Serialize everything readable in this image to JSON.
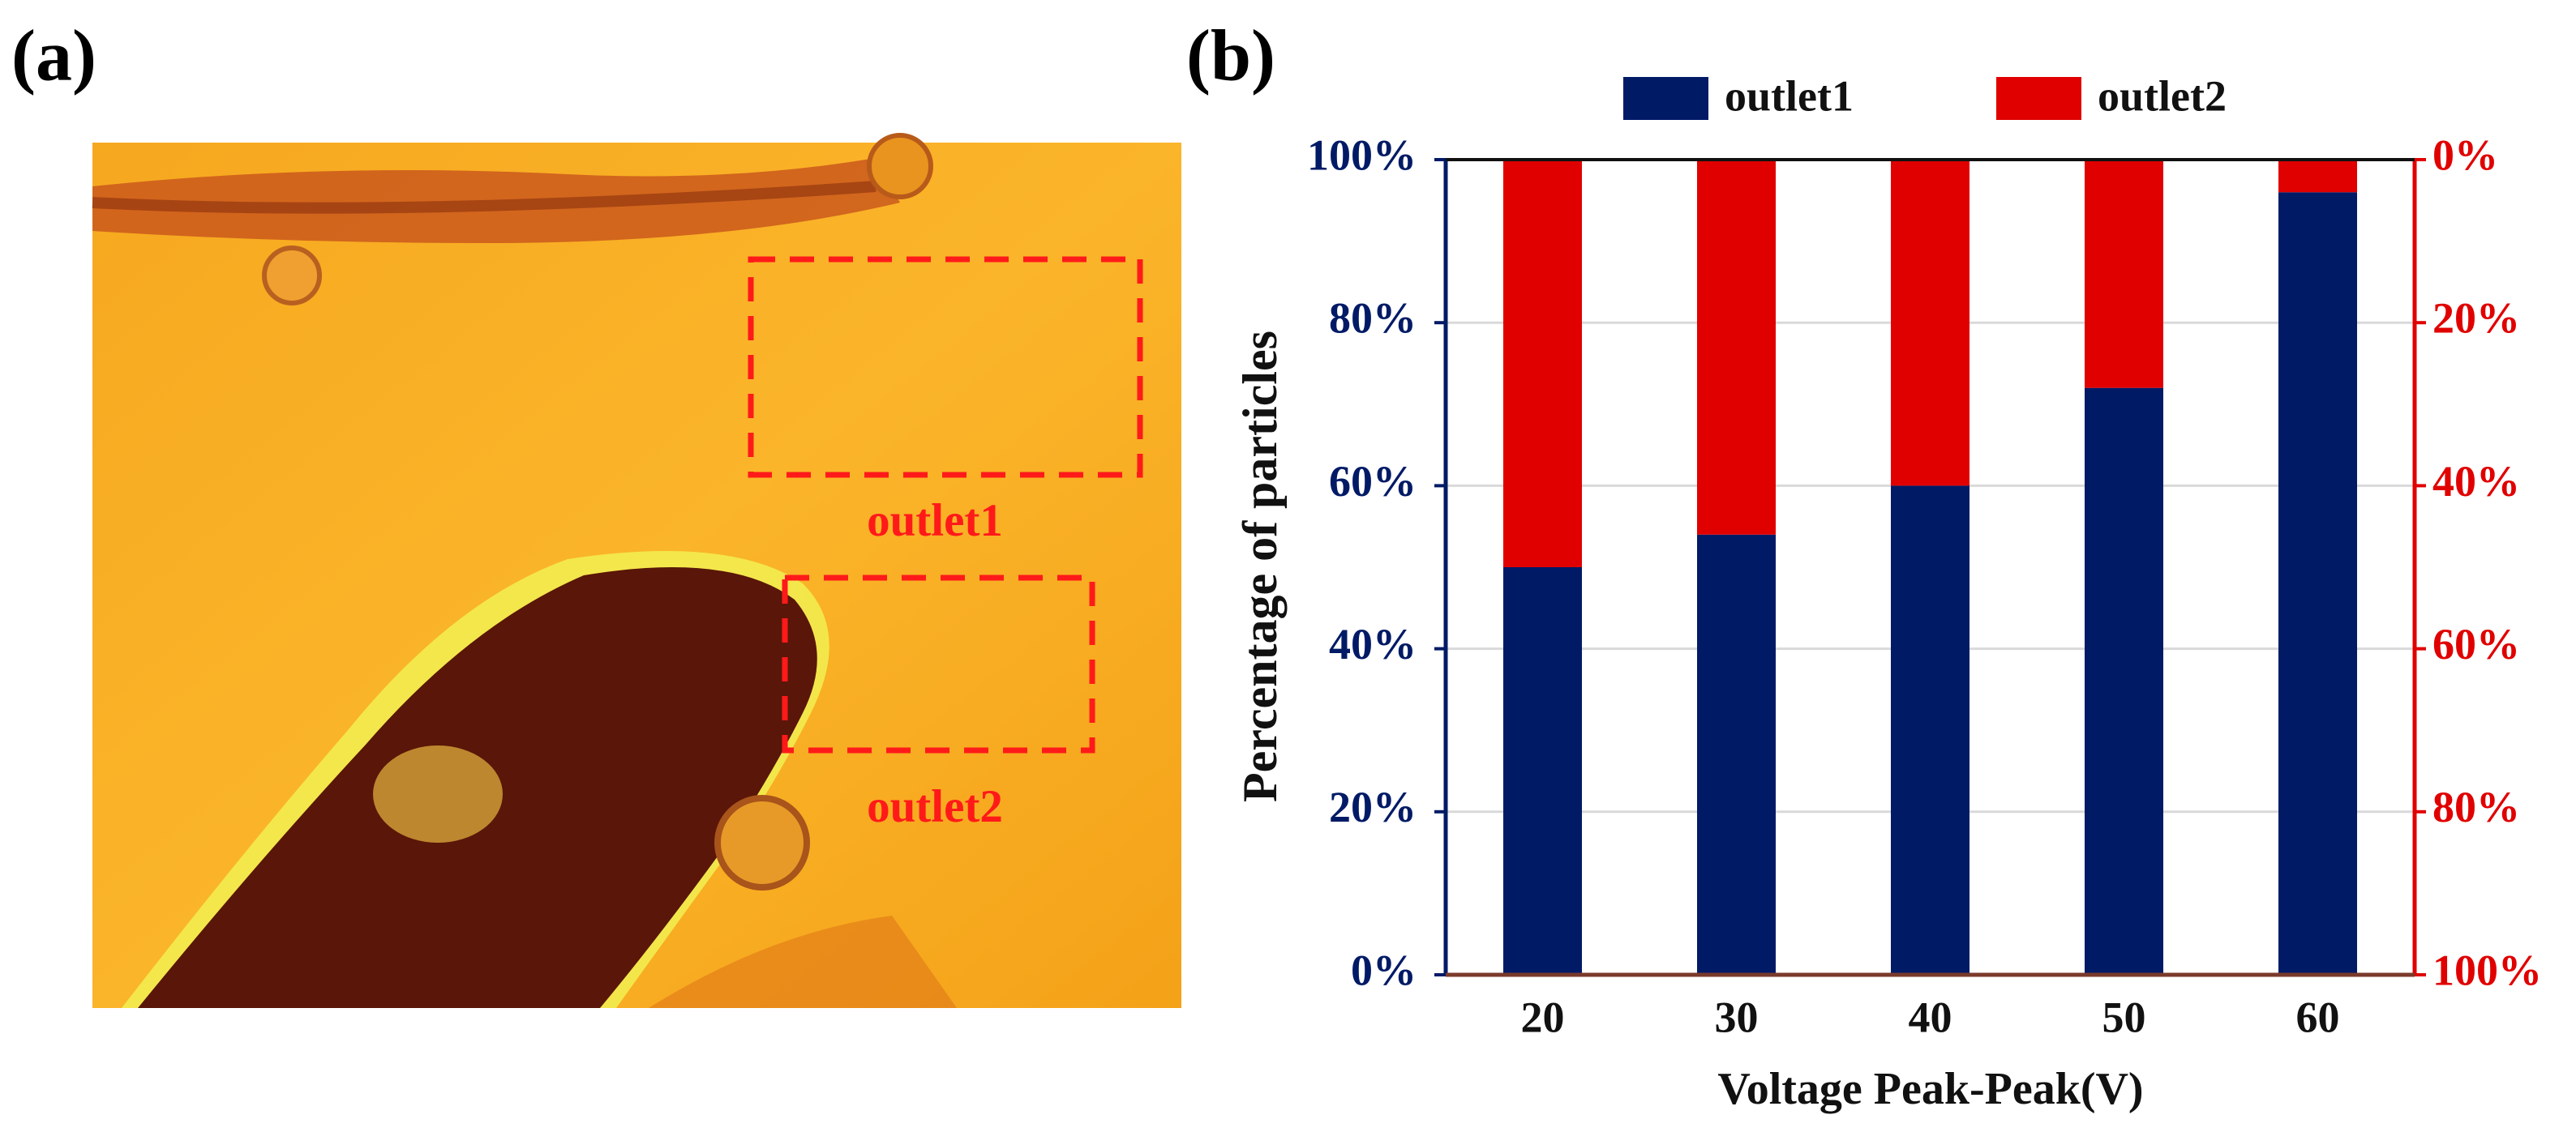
{
  "panels": [
    "(a)",
    "(b)"
  ],
  "image": {
    "regions": [
      "outlet1",
      "outlet2"
    ]
  },
  "chart_data": {
    "type": "bar",
    "stacked": true,
    "xlabel": "Voltage Peak-Peak(V)",
    "ylabel": "Percentage of particles",
    "categories": [
      "20",
      "30",
      "40",
      "50",
      "60"
    ],
    "series": [
      {
        "name": "outlet1",
        "color": "#001a66",
        "values": [
          50,
          54,
          60,
          72,
          96
        ]
      },
      {
        "name": "outlet2",
        "color": "#e00000",
        "axis": "y2",
        "values": [
          50,
          46,
          40,
          28,
          4
        ]
      }
    ],
    "ylim": [
      0,
      100
    ],
    "yticks": [
      {
        "value": 0,
        "label": "0%"
      },
      {
        "value": 20,
        "label": "20%"
      },
      {
        "value": 40,
        "label": "40%"
      },
      {
        "value": 60,
        "label": "60%"
      },
      {
        "value": 80,
        "label": "80%"
      },
      {
        "value": 100,
        "label": "100%"
      }
    ],
    "y2lim": [
      100,
      0
    ],
    "y2ticks": [
      {
        "value": 0,
        "label": "0%"
      },
      {
        "value": 20,
        "label": "20%"
      },
      {
        "value": 40,
        "label": "40%"
      },
      {
        "value": 60,
        "label": "60%"
      },
      {
        "value": 80,
        "label": "80%"
      },
      {
        "value": 100,
        "label": "100%"
      }
    ],
    "grid": true,
    "legend": "top"
  }
}
